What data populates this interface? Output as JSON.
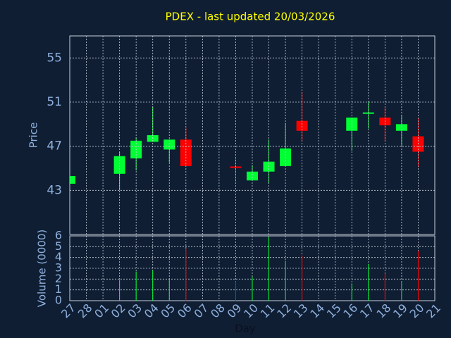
{
  "chart_data": {
    "type": "candlestick",
    "title": "PDEX - last updated 20/03/2026",
    "x_label": "Day",
    "y_label": "Price",
    "volume_label": "Volume (0000)",
    "categories": [
      "27",
      "28",
      "01",
      "02",
      "03",
      "04",
      "05",
      "06",
      "07",
      "08",
      "09",
      "10",
      "11",
      "12",
      "13",
      "14",
      "15",
      "16",
      "17",
      "18",
      "19",
      "20",
      "21"
    ],
    "open": [
      43.6,
      null,
      null,
      44.5,
      45.9,
      47.4,
      46.7,
      47.6,
      null,
      null,
      45.1,
      43.9,
      44.7,
      45.2,
      49.3,
      null,
      null,
      48.4,
      49.9,
      49.6,
      48.4,
      47.9,
      null
    ],
    "high": [
      44.3,
      null,
      null,
      46.5,
      47.8,
      50.6,
      47.6,
      48.7,
      null,
      null,
      45.9,
      45.3,
      47.6,
      49.1,
      51.9,
      null,
      null,
      49.6,
      51.0,
      50.5,
      49.8,
      49.6,
      null
    ],
    "low": [
      43.6,
      null,
      null,
      43.0,
      44.8,
      47.4,
      45.5,
      45.2,
      null,
      null,
      43.8,
      43.9,
      43.6,
      45.2,
      47.5,
      null,
      null,
      46.6,
      48.6,
      47.5,
      47.0,
      45.1,
      null
    ],
    "close": [
      44.3,
      null,
      null,
      46.1,
      47.5,
      48.0,
      47.6,
      45.2,
      null,
      null,
      45.0,
      44.7,
      45.6,
      46.8,
      48.4,
      null,
      null,
      49.6,
      50.0,
      48.9,
      49.0,
      46.5,
      null
    ],
    "volume": [
      null,
      null,
      null,
      1.9,
      2.7,
      2.8,
      2.0,
      4.8,
      null,
      null,
      1.8,
      2.2,
      5.9,
      3.7,
      4.2,
      null,
      null,
      1.6,
      3.4,
      2.5,
      1.8,
      4.6,
      null
    ],
    "up_color": "#00ff33",
    "down_color": "#ff0000",
    "ylim": [
      39,
      57
    ],
    "yticks": [
      43,
      47,
      51,
      55
    ],
    "volume_ylim": [
      0,
      6
    ],
    "volume_yticks": [
      0,
      1,
      2,
      3,
      4,
      5,
      6
    ],
    "grid": true
  }
}
